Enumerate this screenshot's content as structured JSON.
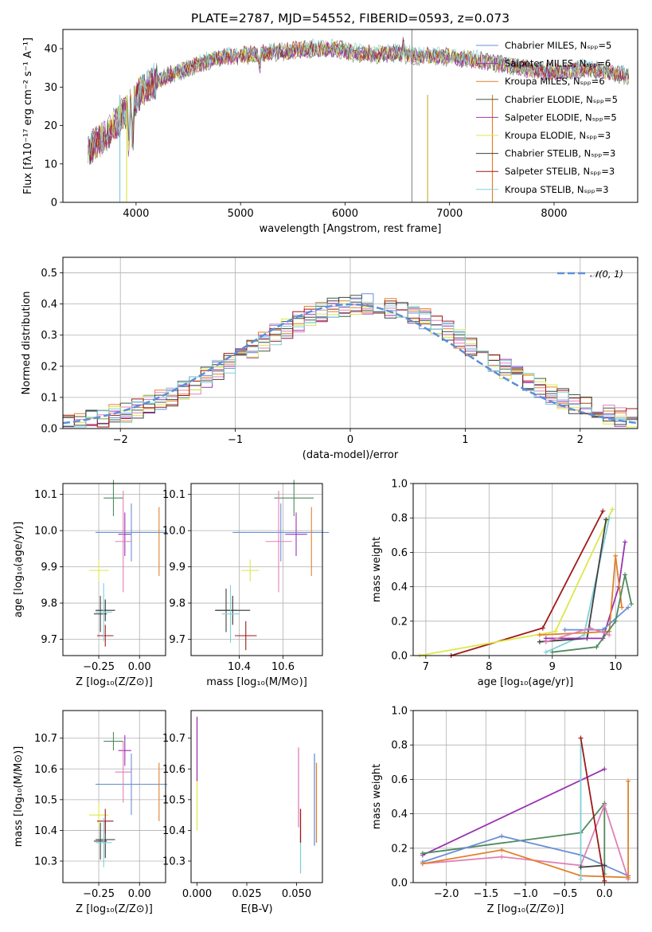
{
  "colors": [
    "#6d8f6d",
    "#9a34b0",
    "#e2812b",
    "#3f5f3f",
    "#a034b0",
    "#dce84a",
    "#404040",
    "#a01818",
    "#80d0d8"
  ],
  "legend_colors": [
    "#6b8fd6",
    "#9a34b0",
    "#e2812b",
    "#3f5f3f",
    "#a034b0",
    "#dce84a",
    "#404040",
    "#a01818",
    "#80d0d8"
  ],
  "chart_data": [
    {
      "type": "line",
      "title": "PLATE=2787, MJD=54552, FIBERID=0593, z=0.073",
      "xlabel": "wavelength [Angstrom, rest frame]",
      "ylabel": "Flux [fλ10⁻¹⁷ erg cm⁻² s⁻¹ A⁻¹]",
      "xlim": [
        3300,
        8800
      ],
      "ylim": [
        0,
        45
      ],
      "xticks": [
        "4000",
        "5000",
        "6000",
        "7000",
        "8000"
      ],
      "yticks": [
        "0",
        "10",
        "20",
        "30",
        "40"
      ],
      "legend_position": "top-right",
      "series": [
        {
          "name": "Chabrier MILES, Nₛₚₚ=5"
        },
        {
          "name": "Salpeter MILES, Nₛₚₚ=6"
        },
        {
          "name": "Kroupa MILES, Nₛₚₚ=6"
        },
        {
          "name": "Chabrier ELODIE, Nₛₚₚ=5"
        },
        {
          "name": "Salpeter ELODIE, Nₛₚₚ=5"
        },
        {
          "name": "Kroupa ELODIE, Nₛₚₚ=3"
        },
        {
          "name": "Chabrier STELIB, Nₛₚₚ=3"
        },
        {
          "name": "Salpeter STELIB, Nₛₚₚ=3"
        },
        {
          "name": "Kroupa STELIB, Nₛₚₚ=3"
        }
      ],
      "continuum": {
        "x": [
          3550,
          3650,
          3750,
          3850,
          3950,
          4050,
          4150,
          4300,
          4500,
          4700,
          4900,
          5100,
          5300,
          5500,
          5700,
          5900,
          6100,
          6300,
          6500,
          6700,
          6900,
          7100,
          7300,
          7500,
          7700,
          7900,
          8100,
          8300,
          8500,
          8700
        ],
        "y": [
          14,
          16,
          19,
          22,
          25,
          29,
          31,
          33,
          35,
          37,
          38,
          38.5,
          39,
          39.5,
          40,
          40,
          39,
          38.5,
          39,
          38,
          38,
          37.5,
          37,
          36,
          35,
          34,
          34,
          35,
          34,
          33
        ]
      }
    },
    {
      "type": "bar",
      "xlabel": "(data-model)/error",
      "ylabel": "Normed distribution",
      "xlim": [
        -2.5,
        2.5
      ],
      "ylim": [
        0,
        0.55
      ],
      "xticks": [
        "−2",
        "−1",
        "0",
        "1",
        "2"
      ],
      "yticks": [
        "0.0",
        "0.1",
        "0.2",
        "0.3",
        "0.4",
        "0.5"
      ],
      "legend": "𝒩(0, 1)",
      "legend_position": "top-right",
      "bin_width": 0.1,
      "bin_start": -2.5
    },
    {
      "type": "scatter",
      "xlabel": "Z [log₁₀(Z/Z⊙)]",
      "ylabel": "age  [log₁₀(age/yr)]",
      "xlim": [
        -0.47,
        0.16
      ],
      "ylim": [
        9.655,
        10.13
      ],
      "xticks": [
        "−0.25",
        "0.00"
      ],
      "yticks": [
        "9.7",
        "9.8",
        "9.9",
        "10.0",
        "10.1"
      ],
      "points": [
        {
          "x": -0.16,
          "xerr": 0.06,
          "y": 10.09,
          "yerr": 0.05
        },
        {
          "x": -0.09,
          "xerr": 0.04,
          "y": 9.99,
          "yerr": 0.06
        },
        {
          "x": -0.05,
          "xerr": 0.22,
          "y": 9.995,
          "yerr": 0.08
        },
        {
          "x": -0.21,
          "xerr": 0.06,
          "y": 9.78,
          "yerr": 0.03
        },
        {
          "x": -0.1,
          "xerr": 0.05,
          "y": 9.97,
          "yerr": 0.14
        },
        {
          "x": -0.25,
          "xerr": 0.06,
          "y": 9.89,
          "yerr": 0.03
        },
        {
          "x": -0.24,
          "xerr": 0.04,
          "y": 9.77,
          "yerr": 0.05
        },
        {
          "x": -0.21,
          "xerr": 0.05,
          "y": 9.71,
          "yerr": 0.03
        },
        {
          "x": -0.22,
          "xerr": 0.05,
          "y": 9.775,
          "yerr": 0.08
        }
      ]
    },
    {
      "type": "scatter",
      "xlabel": "mass [log₁₀(M/M⊙)]",
      "ylabel": "",
      "xlim": [
        10.18,
        10.78
      ],
      "ylim": [
        9.655,
        10.13
      ],
      "xticks": [
        "10.4",
        "10.6"
      ],
      "yticks": [
        "9.7",
        "9.8",
        "9.9",
        "10.0",
        "10.1"
      ],
      "points": [
        {
          "x": 10.65,
          "xerr": 0.09,
          "y": 10.09,
          "yerr": 0.05
        },
        {
          "x": 10.66,
          "xerr": 0.05,
          "y": 9.99,
          "yerr": 0.06
        },
        {
          "x": 10.59,
          "xerr": 0.22,
          "y": 9.995,
          "yerr": 0.08
        },
        {
          "x": 10.37,
          "xerr": 0.08,
          "y": 9.78,
          "yerr": 0.04
        },
        {
          "x": 10.58,
          "xerr": 0.06,
          "y": 9.97,
          "yerr": 0.14
        },
        {
          "x": 10.45,
          "xerr": 0.04,
          "y": 9.89,
          "yerr": 0.03
        },
        {
          "x": 10.34,
          "xerr": 0.05,
          "y": 9.78,
          "yerr": 0.06
        },
        {
          "x": 10.43,
          "xerr": 0.05,
          "y": 9.71,
          "yerr": 0.04
        },
        {
          "x": 10.36,
          "xerr": 0.04,
          "y": 9.77,
          "yerr": 0.08
        }
      ]
    },
    {
      "type": "line",
      "xlabel": "age  [log₁₀(age/yr)]",
      "ylabel": "mass weight",
      "xlim": [
        6.8,
        10.35
      ],
      "ylim": [
        0,
        1
      ],
      "xticks": [
        "7",
        "8",
        "9",
        "10"
      ],
      "yticks": [
        "0.0",
        "0.2",
        "0.4",
        "0.6",
        "0.8",
        "1.0"
      ]
    },
    {
      "type": "scatter",
      "xlabel": "Z [log₁₀(Z/Z⊙)]",
      "ylabel": "mass [log₁₀(M/M⊙)]",
      "xlim": [
        -0.47,
        0.16
      ],
      "ylim": [
        10.23,
        10.79
      ],
      "xticks": [
        "−0.25",
        "0.00"
      ],
      "yticks": [
        "10.3",
        "10.4",
        "10.5",
        "10.6",
        "10.7"
      ],
      "points": [
        {
          "x": -0.16,
          "xerr": 0.06,
          "y": 10.69,
          "yerr": 0.03
        },
        {
          "x": -0.09,
          "xerr": 0.04,
          "y": 10.66,
          "yerr": 0.05
        },
        {
          "x": -0.05,
          "xerr": 0.22,
          "y": 10.55,
          "yerr": 0.1
        },
        {
          "x": -0.21,
          "xerr": 0.06,
          "y": 10.37,
          "yerr": 0.06
        },
        {
          "x": -0.1,
          "xerr": 0.05,
          "y": 10.59,
          "yerr": 0.1
        },
        {
          "x": -0.25,
          "xerr": 0.06,
          "y": 10.45,
          "yerr": 0.04
        },
        {
          "x": -0.24,
          "xerr": 0.04,
          "y": 10.365,
          "yerr": 0.06
        },
        {
          "x": -0.21,
          "xerr": 0.05,
          "y": 10.43,
          "yerr": 0.04
        },
        {
          "x": -0.22,
          "xerr": 0.05,
          "y": 10.36,
          "yerr": 0.08
        }
      ]
    },
    {
      "type": "scatter",
      "xlabel": "E(B-V)",
      "ylabel": "",
      "xlim": [
        -0.003,
        0.063
      ],
      "ylim": [
        10.23,
        10.79
      ],
      "xticks": [
        "0.000",
        "0.025",
        "0.050"
      ],
      "yticks": [
        "10.3",
        "10.4",
        "10.5",
        "10.6",
        "10.7"
      ]
    },
    {
      "type": "line",
      "xlabel": "Z [log₁₀(Z/Z⊙)]",
      "ylabel": "mass weight",
      "xlim": [
        -2.42,
        0.42
      ],
      "ylim": [
        0,
        1
      ],
      "xticks": [
        "−2.0",
        "−1.5",
        "−1.0",
        "−0.5",
        "0.0"
      ],
      "yticks": [
        "0.0",
        "0.2",
        "0.4",
        "0.6",
        "0.8",
        "1.0"
      ]
    }
  ]
}
